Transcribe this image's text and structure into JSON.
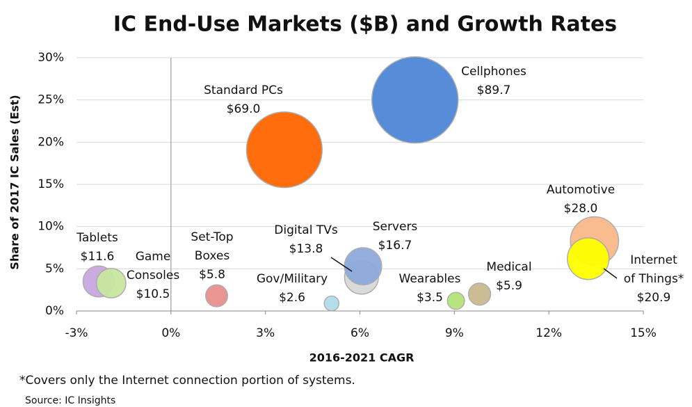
{
  "chart_data": {
    "type": "bubble",
    "title": "IC End-Use Markets ($B) and Growth Rates",
    "x_label": "2016-2021 CAGR",
    "y_label": "Share of 2017 IC Sales (Est)",
    "xlim": [
      -3,
      15
    ],
    "ylim": [
      0,
      30
    ],
    "xticks": [
      {
        "value": -3,
        "label": "-3%"
      },
      {
        "value": 0,
        "label": "0%"
      },
      {
        "value": 3,
        "label": "3%"
      },
      {
        "value": 6,
        "label": "6%"
      },
      {
        "value": 9,
        "label": "9%"
      },
      {
        "value": 12,
        "label": "12%"
      },
      {
        "value": 15,
        "label": "15%"
      }
    ],
    "yticks": [
      {
        "value": 0,
        "label": "0%"
      },
      {
        "value": 5,
        "label": "5%"
      },
      {
        "value": 10,
        "label": "10%"
      },
      {
        "value": 15,
        "label": "15%"
      },
      {
        "value": 20,
        "label": "20%"
      },
      {
        "value": 25,
        "label": "25%"
      },
      {
        "value": 30,
        "label": "30%"
      }
    ],
    "grid": true,
    "points": [
      {
        "name": [
          "Tablets"
        ],
        "x": -2.3,
        "y": 3.5,
        "size": 11.6,
        "value_label": "$11.6",
        "color": "#c9a8e0"
      },
      {
        "name": [
          "Game",
          "Consoles"
        ],
        "x": -1.9,
        "y": 3.3,
        "size": 10.5,
        "value_label": "$10.5",
        "color": "#c8e6a0"
      },
      {
        "name": [
          "Set-Top",
          "Boxes"
        ],
        "x": 1.45,
        "y": 1.8,
        "size": 5.8,
        "value_label": "$5.8",
        "color": "#e8908c"
      },
      {
        "name": [
          "Gov/Military"
        ],
        "x": 5.1,
        "y": 0.9,
        "size": 2.6,
        "value_label": "$2.6",
        "color": "#b3dcea"
      },
      {
        "name": [
          "Digital TVs"
        ],
        "x": 6.05,
        "y": 4.0,
        "size": 13.8,
        "value_label": "$13.8",
        "color": "#d9d9d9"
      },
      {
        "name": [
          "Servers"
        ],
        "x": 6.1,
        "y": 5.3,
        "size": 16.7,
        "value_label": "$16.7",
        "color": "#8eaadb"
      },
      {
        "name": [
          "Wearables"
        ],
        "x": 9.05,
        "y": 1.2,
        "size": 3.5,
        "value_label": "$3.5",
        "color": "#b5e37a"
      },
      {
        "name": [
          "Medical"
        ],
        "x": 9.8,
        "y": 2.0,
        "size": 5.9,
        "value_label": "$5.9",
        "color": "#c9b98f"
      },
      {
        "name": [
          "Automotive"
        ],
        "x": 13.45,
        "y": 8.3,
        "size": 28.0,
        "value_label": "$28.0",
        "color": "#f8b98a"
      },
      {
        "name": [
          "Internet",
          "of Things*"
        ],
        "x": 13.25,
        "y": 6.2,
        "size": 20.9,
        "value_label": "$20.9",
        "color": "#ffff00"
      },
      {
        "name": [
          "Standard PCs"
        ],
        "x": 3.6,
        "y": 19.1,
        "size": 69.0,
        "value_label": "$69.0",
        "color": "#ff6600"
      },
      {
        "name": [
          "Cellphones"
        ],
        "x": 7.75,
        "y": 25.0,
        "size": 89.7,
        "value_label": "$89.7",
        "color": "#4f86d8"
      }
    ],
    "footnote": "*Covers only the Internet connection portion of systems.",
    "source": "Source: IC Insights"
  }
}
